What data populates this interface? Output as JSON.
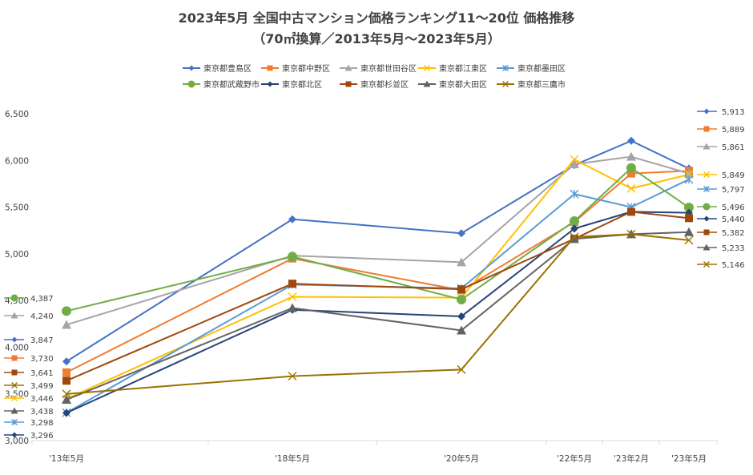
{
  "chart_data": {
    "type": "line",
    "title": "2023年5月 全国中古マンション価格ランキング11～20位 価格推移",
    "subtitle": "（70㎡換算／2013年5月～2023年5月）",
    "categories": [
      "'13年5月",
      "'18年5月",
      "'20年5月",
      "'22年5月",
      "'23年2月",
      "'23年5月"
    ],
    "ylim": [
      3000,
      6500
    ],
    "yticks": [
      "3,000",
      "3,500",
      "4,000",
      "4,500",
      "5,000",
      "5,500",
      "6,000",
      "6,500"
    ],
    "grid": false,
    "legend_position": "top",
    "series": [
      {
        "name": "東京都豊島区",
        "color": "#4472C4",
        "marker": "diamond",
        "values": [
          3847,
          5370,
          5220,
          5950,
          6210,
          5913
        ],
        "first_label": "3,847",
        "last_label": "5,913"
      },
      {
        "name": "東京都中野区",
        "color": "#ED7D31",
        "marker": "square",
        "values": [
          3730,
          4950,
          4610,
          5340,
          5860,
          5889
        ],
        "first_label": "3,730",
        "last_label": "5,889"
      },
      {
        "name": "東京都世田谷区",
        "color": "#A5A5A5",
        "marker": "triangle",
        "values": [
          4240,
          4980,
          4910,
          5960,
          6040,
          5861
        ],
        "first_label": "4,240",
        "last_label": "5,861"
      },
      {
        "name": "東京都江東区",
        "color": "#FFC000",
        "marker": "x",
        "values": [
          3446,
          4540,
          4530,
          6010,
          5700,
          5849
        ],
        "first_label": "3,446",
        "last_label": "5,849"
      },
      {
        "name": "東京都墨田区",
        "color": "#5B9BD5",
        "marker": "star",
        "values": [
          3298,
          4670,
          4630,
          5640,
          5500,
          5797
        ],
        "first_label": "3,298",
        "last_label": "5,797"
      },
      {
        "name": "東京都武蔵野市",
        "color": "#70AD47",
        "marker": "circle",
        "values": [
          4387,
          4970,
          4510,
          5350,
          5920,
          5496
        ],
        "first_label": "4,387",
        "last_label": "5,496"
      },
      {
        "name": "東京都北区",
        "color": "#264478",
        "marker": "diamond",
        "values": [
          3296,
          4400,
          4330,
          5270,
          5450,
          5440
        ],
        "first_label": "3,296",
        "last_label": "5,440"
      },
      {
        "name": "東京都杉並区",
        "color": "#9E480E",
        "marker": "square",
        "values": [
          3641,
          4680,
          4620,
          5160,
          5450,
          5382
        ],
        "first_label": "3,641",
        "last_label": "5,382"
      },
      {
        "name": "東京都大田区",
        "color": "#636363",
        "marker": "triangle",
        "values": [
          3438,
          4420,
          4180,
          5160,
          5210,
          5233
        ],
        "first_label": "3,438",
        "last_label": "5,233"
      },
      {
        "name": "東京都三鷹市",
        "color": "#997300",
        "marker": "x",
        "values": [
          3499,
          3690,
          3760,
          5180,
          5210,
          5146
        ],
        "first_label": "3,499",
        "last_label": "5,146"
      }
    ]
  }
}
